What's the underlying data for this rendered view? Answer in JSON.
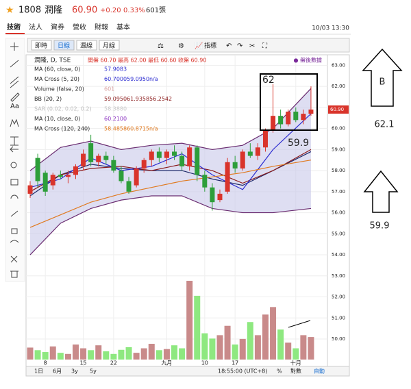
{
  "header": {
    "symbol": "1808",
    "name": "潤隆",
    "price": "60.90",
    "change": "+0.20",
    "change_pct": "0.33%",
    "volume": "601張"
  },
  "tabs": [
    "技術",
    "法人",
    "資券",
    "營收",
    "財報",
    "基本"
  ],
  "datetime": "10/03 13:30",
  "toolbar": [
    "即時",
    "日線",
    "週線",
    "月線"
  ],
  "indicator_button": "指標",
  "tools_text": "Aa",
  "legend": {
    "title": "潤隆, D, TSE",
    "ohlc": "開盤 60.70 最高 62.00 最低 60.60 收盤 60.90",
    "after_hours": "● 盤後數據",
    "rows": [
      {
        "label": "MA (60, close, 0)",
        "values": [
          "57.9083"
        ],
        "color": "#2a2ad0"
      },
      {
        "label": "MA Cross (5, 20)",
        "values": [
          "60.7000",
          "59.0950",
          "n/a"
        ],
        "color": "#2a2ad0"
      },
      {
        "label": "Volume (false, 20)",
        "values": [
          "601"
        ],
        "color": "#d8a0a0"
      },
      {
        "label": "BB (20, 2)",
        "values": [
          "59.0950",
          "61.9358",
          "56.2542"
        ],
        "color": "#8a1a1a"
      },
      {
        "label": "SAR (0.02, 0.02, 0.2)",
        "values": [
          "58.3880"
        ],
        "color": "#c8c8c8"
      },
      {
        "label": "MA (10, close, 0)",
        "values": [
          "60.2100"
        ],
        "color": "#8a30c0"
      },
      {
        "label": "MA Cross (120, 240)",
        "values": [
          "58.4858",
          "60.8715",
          "n/a"
        ],
        "color": "#e07a20"
      }
    ]
  },
  "chart_data": {
    "type": "candlestick",
    "categories": [
      null,
      null,
      "8",
      null,
      null,
      null,
      null,
      "15",
      null,
      null,
      null,
      "22",
      null,
      null,
      null,
      null,
      null,
      null,
      "九月",
      null,
      null,
      null,
      null,
      "10",
      null,
      null,
      null,
      "17",
      null,
      null,
      null,
      null,
      null,
      null,
      null,
      "十月",
      null,
      null
    ],
    "open": [
      56.9,
      58.6,
      57.9,
      57.3,
      57.8,
      57.7,
      57.8,
      58.2,
      59.3,
      58.4,
      58.7,
      58.5,
      58.0,
      57.5,
      57.3,
      58.1,
      58.5,
      58.9,
      58.6,
      58.9,
      58.7,
      58.2,
      59.1,
      57.8,
      57.2,
      56.6,
      57.0,
      58.4,
      58.1,
      58.9,
      58.7,
      59.1,
      59.9,
      60.6,
      60.2,
      60.8,
      60.4,
      60.7
    ],
    "high": [
      57.5,
      58.8,
      58.0,
      57.9,
      58.0,
      58.0,
      58.3,
      59.0,
      59.7,
      58.8,
      58.9,
      58.7,
      58.2,
      57.7,
      58.2,
      58.6,
      59.0,
      59.1,
      59.0,
      59.2,
      58.9,
      59.2,
      59.2,
      58.0,
      57.4,
      57.1,
      58.6,
      58.7,
      59.0,
      59.3,
      59.3,
      60.0,
      62.1,
      60.9,
      60.9,
      61.0,
      60.9,
      62.0
    ],
    "low": [
      56.7,
      57.2,
      56.8,
      57.1,
      57.6,
      57.4,
      57.6,
      58.0,
      58.2,
      58.2,
      58.3,
      57.9,
      57.4,
      56.9,
      57.2,
      57.9,
      58.2,
      58.4,
      58.3,
      58.5,
      58.0,
      58.0,
      57.5,
      57.0,
      56.1,
      56.5,
      56.9,
      57.9,
      58.0,
      58.6,
      58.5,
      58.9,
      59.8,
      60.0,
      60.1,
      60.3,
      60.2,
      60.6
    ],
    "close": [
      57.3,
      57.5,
      57.0,
      57.8,
      57.7,
      57.8,
      58.2,
      58.8,
      58.4,
      58.7,
      58.5,
      58.0,
      57.5,
      57.0,
      58.1,
      58.5,
      58.9,
      58.6,
      58.9,
      58.7,
      58.2,
      59.1,
      57.8,
      57.2,
      56.5,
      56.9,
      58.4,
      58.1,
      58.9,
      58.7,
      59.1,
      59.9,
      60.6,
      60.2,
      60.8,
      60.4,
      60.7,
      60.9
    ],
    "volume": [
      320,
      250,
      200,
      350,
      180,
      150,
      400,
      300,
      250,
      380,
      220,
      150,
      260,
      330,
      180,
      300,
      420,
      250,
      280,
      380,
      300,
      2100,
      1700,
      700,
      560,
      650,
      900,
      400,
      550,
      1000,
      650,
      1200,
      1400,
      800,
      450,
      300,
      650,
      601
    ],
    "up_color": "#d9342b",
    "down_color": "#2d9e3a",
    "up_volume_color": "#c98a8a",
    "down_volume_color": "#8ee880",
    "overlays": [
      {
        "color": "#6a2c70",
        "x": [
          0,
          4,
          8,
          12,
          16,
          20,
          24,
          28,
          32,
          37
        ],
        "values": [
          58.0,
          59.1,
          59.4,
          59.0,
          59.2,
          59.3,
          59.0,
          59.2,
          60.0,
          61.9
        ]
      },
      {
        "color": "#6a2c70",
        "x": [
          0,
          4,
          8,
          12,
          16,
          20,
          24,
          28,
          32,
          37
        ],
        "values": [
          54.0,
          55.5,
          56.2,
          56.6,
          56.8,
          56.8,
          56.2,
          56.0,
          56.0,
          56.2
        ]
      },
      {
        "color": "#1f2a6a",
        "x": [
          0,
          4,
          8,
          12,
          16,
          20,
          24,
          28,
          32,
          37
        ],
        "values": [
          56.8,
          57.8,
          58.3,
          58.1,
          58.0,
          58.0,
          57.6,
          57.3,
          58.0,
          58.9
        ]
      },
      {
        "color": "#8a1a1a",
        "x": [
          0,
          4,
          8,
          12,
          16,
          20,
          24,
          28,
          32,
          37
        ],
        "values": [
          57.0,
          57.8,
          58.1,
          58.2,
          58.0,
          58.3,
          58.0,
          57.4,
          58.0,
          59.0
        ]
      },
      {
        "color": "#2a2ad0",
        "x": [
          0,
          4,
          8,
          12,
          16,
          20,
          24,
          28,
          32,
          37
        ],
        "values": [
          57.2,
          57.6,
          58.6,
          58.0,
          58.2,
          58.8,
          57.8,
          57.1,
          59.0,
          60.7
        ]
      },
      {
        "color": "#e07a20",
        "x": [
          0,
          4,
          8,
          12,
          16,
          20,
          24,
          28,
          32,
          37
        ],
        "values": [
          55.3,
          55.9,
          56.5,
          56.9,
          57.2,
          57.5,
          57.7,
          57.9,
          58.2,
          58.5
        ]
      }
    ],
    "band_fill": "#c8c8ea",
    "ylim": [
      48.7,
      63.5
    ],
    "yticks": [
      {
        "value": 63,
        "label": "63.00"
      },
      {
        "value": 62,
        "label": "62.00"
      },
      {
        "value": 61,
        "label": "61.00"
      },
      {
        "value": 60,
        "label": "60.00"
      },
      {
        "value": 59,
        "label": "59.00"
      },
      {
        "value": 58,
        "label": "58.00"
      },
      {
        "value": 57,
        "label": "57.00"
      },
      {
        "value": 56,
        "label": "56.00"
      },
      {
        "value": 55,
        "label": "55.00"
      },
      {
        "value": 54,
        "label": "54.00"
      },
      {
        "value": 53,
        "label": "53.00"
      },
      {
        "value": 52,
        "label": "52.00"
      },
      {
        "value": 51,
        "label": "51.00"
      },
      {
        "value": 50,
        "label": "50.00"
      }
    ],
    "grid": true,
    "annotations": [
      "62",
      "59.9"
    ]
  },
  "side_notes": {
    "box_label": "B",
    "high": "62.1",
    "low": "59.9"
  },
  "bottom_bar": {
    "ranges": [
      "1日",
      "6月",
      "3y",
      "5y"
    ],
    "time": "18:55:00 (UTC+8)",
    "pct": "%",
    "log": "對數",
    "auto": "自動"
  }
}
